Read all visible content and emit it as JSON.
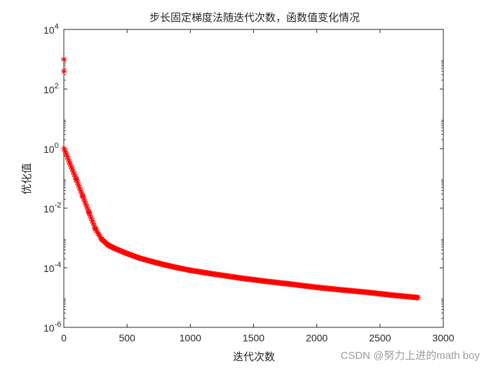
{
  "chart_data": {
    "type": "scatter",
    "title": "步长固定梯度法随迭代次数，函数值变化情况",
    "xlabel": "迭代次数",
    "ylabel": "优化值",
    "xlim": [
      0,
      3000
    ],
    "ylim": [
      1e-06,
      10000.0
    ],
    "yscale": "log",
    "grid": false,
    "marker": "*",
    "color": "#ff0000",
    "xticks": [
      0,
      500,
      1000,
      1500,
      2000,
      2500,
      3000
    ],
    "xtick_labels": [
      "0",
      "500",
      "1000",
      "1500",
      "2000",
      "2500",
      "3000"
    ],
    "yticks": [
      1e-06,
      0.0001,
      0.01,
      1.0,
      100.0,
      10000.0
    ],
    "ytick_labels": [
      {
        "base": "10",
        "exp": "-6"
      },
      {
        "base": "10",
        "exp": "-4"
      },
      {
        "base": "10",
        "exp": "-2"
      },
      {
        "base": "10",
        "exp": "0"
      },
      {
        "base": "10",
        "exp": "2"
      },
      {
        "base": "10",
        "exp": "4"
      }
    ],
    "series": [
      {
        "outliers": [
          [
            1,
            1000
          ],
          [
            2,
            400
          ]
        ],
        "x": [
          3,
          50,
          100,
          150,
          200,
          250,
          300,
          350,
          400,
          500,
          600,
          700,
          800,
          900,
          1000,
          1200,
          1400,
          1600,
          1800,
          2000,
          2200,
          2400,
          2600,
          2800
        ],
        "y": [
          1.0,
          0.3,
          0.09,
          0.025,
          0.007,
          0.002,
          0.0009,
          0.00058,
          0.00045,
          0.0003,
          0.00021,
          0.00016,
          0.000125,
          0.0001,
          8.2e-05,
          6e-05,
          4.5e-05,
          3.5e-05,
          2.8e-05,
          2.2e-05,
          1.8e-05,
          1.5e-05,
          1.2e-05,
          1e-05
        ]
      }
    ]
  },
  "watermark": "CSDN @努力上进的math boy"
}
